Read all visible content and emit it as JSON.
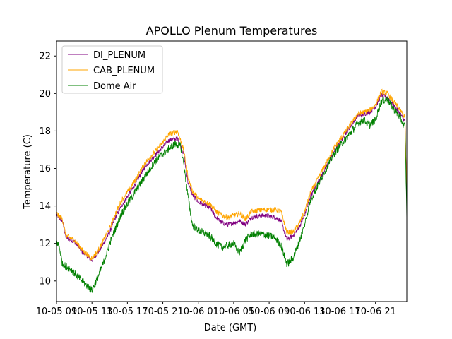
{
  "chart_data": {
    "type": "line",
    "title": "APOLLO Plenum Temperatures",
    "xlabel": "Date (GMT)",
    "ylabel": "Temperature (C)",
    "ylim": [
      8.9,
      22.8
    ],
    "yticks": [
      10,
      12,
      14,
      16,
      18,
      20,
      22
    ],
    "xlim": [
      0,
      59.3
    ],
    "xticks": [
      {
        "t": 0,
        "label": "10-05 09"
      },
      {
        "t": 6,
        "label": "10-05 13"
      },
      {
        "t": 12,
        "label": "10-05 17"
      },
      {
        "t": 18,
        "label": "10-05 21"
      },
      {
        "t": 24,
        "label": "10-06 01"
      },
      {
        "t": 30,
        "label": "10-06 05"
      },
      {
        "t": 36,
        "label": "10-06 09"
      },
      {
        "t": 42,
        "label": "10-06 13"
      },
      {
        "t": 48,
        "label": "10-06 17"
      },
      {
        "t": 54,
        "label": "10-06 21"
      }
    ],
    "legend_position": "top-left",
    "series": [
      {
        "name": "DI_PLENUM",
        "color": "#800080",
        "noise": 0.12,
        "points": [
          [
            0,
            13.5
          ],
          [
            1,
            13.2
          ],
          [
            1.6,
            12.3
          ],
          [
            3,
            12.1
          ],
          [
            4.5,
            11.5
          ],
          [
            6,
            11.1
          ],
          [
            7,
            11.5
          ],
          [
            8,
            12.0
          ],
          [
            9,
            12.6
          ],
          [
            10,
            13.4
          ],
          [
            11,
            14.0
          ],
          [
            13,
            15.0
          ],
          [
            15,
            16.1
          ],
          [
            17,
            16.8
          ],
          [
            19,
            17.5
          ],
          [
            20.5,
            17.6
          ],
          [
            21.5,
            16.8
          ],
          [
            22.3,
            15.2
          ],
          [
            23,
            14.6
          ],
          [
            24,
            14.2
          ],
          [
            26,
            13.9
          ],
          [
            27,
            13.4
          ],
          [
            28,
            13.1
          ],
          [
            29,
            13.0
          ],
          [
            30,
            13.1
          ],
          [
            31,
            13.2
          ],
          [
            32,
            13.0
          ],
          [
            33,
            13.4
          ],
          [
            35,
            13.5
          ],
          [
            37,
            13.4
          ],
          [
            38,
            13.2
          ],
          [
            39,
            12.2
          ],
          [
            40,
            12.4
          ],
          [
            41,
            12.8
          ],
          [
            42,
            13.5
          ],
          [
            43,
            14.5
          ],
          [
            45,
            15.7
          ],
          [
            47,
            16.9
          ],
          [
            49,
            17.9
          ],
          [
            51,
            18.8
          ],
          [
            53,
            19.0
          ],
          [
            54,
            19.3
          ],
          [
            55,
            19.9
          ],
          [
            56,
            19.8
          ],
          [
            57,
            19.4
          ],
          [
            58,
            19.0
          ],
          [
            59,
            18.5
          ],
          [
            59.3,
            14.2
          ]
        ]
      },
      {
        "name": "CAB_PLENUM",
        "color": "#ffa500",
        "noise": 0.14,
        "points": [
          [
            0,
            13.6
          ],
          [
            1,
            13.3
          ],
          [
            1.6,
            12.4
          ],
          [
            3,
            12.2
          ],
          [
            4.5,
            11.6
          ],
          [
            6,
            11.2
          ],
          [
            7,
            11.6
          ],
          [
            8,
            12.2
          ],
          [
            9,
            12.8
          ],
          [
            10,
            13.6
          ],
          [
            11,
            14.3
          ],
          [
            13,
            15.2
          ],
          [
            15,
            16.3
          ],
          [
            17,
            17.0
          ],
          [
            19,
            17.8
          ],
          [
            20.5,
            18.0
          ],
          [
            21.5,
            17.0
          ],
          [
            22.3,
            15.5
          ],
          [
            23,
            14.8
          ],
          [
            24,
            14.4
          ],
          [
            26,
            14.1
          ],
          [
            27,
            13.7
          ],
          [
            28,
            13.5
          ],
          [
            29,
            13.4
          ],
          [
            30,
            13.5
          ],
          [
            31,
            13.6
          ],
          [
            32,
            13.3
          ],
          [
            33,
            13.7
          ],
          [
            35,
            13.8
          ],
          [
            37,
            13.8
          ],
          [
            38,
            13.7
          ],
          [
            39,
            12.6
          ],
          [
            40,
            12.6
          ],
          [
            41,
            13.0
          ],
          [
            42,
            13.7
          ],
          [
            43,
            14.7
          ],
          [
            45,
            15.9
          ],
          [
            47,
            17.1
          ],
          [
            49,
            18.0
          ],
          [
            51,
            18.9
          ],
          [
            53,
            19.1
          ],
          [
            54,
            19.4
          ],
          [
            55,
            20.1
          ],
          [
            56,
            20.0
          ],
          [
            57,
            19.6
          ],
          [
            58,
            19.2
          ],
          [
            59,
            18.7
          ],
          [
            59.3,
            14.2
          ]
        ]
      },
      {
        "name": "Dome Air",
        "color": "#008000",
        "noise": 0.2,
        "points": [
          [
            0,
            12.1
          ],
          [
            0.5,
            11.8
          ],
          [
            1,
            10.9
          ],
          [
            2.5,
            10.6
          ],
          [
            4,
            10.1
          ],
          [
            5,
            9.8
          ],
          [
            6,
            9.5
          ],
          [
            7,
            10.2
          ],
          [
            8,
            11.0
          ],
          [
            9,
            12.0
          ],
          [
            10,
            12.8
          ],
          [
            11,
            13.6
          ],
          [
            13,
            14.6
          ],
          [
            15,
            15.6
          ],
          [
            17,
            16.5
          ],
          [
            18.5,
            16.9
          ],
          [
            20,
            17.3
          ],
          [
            21,
            17.2
          ],
          [
            21.5,
            16.3
          ],
          [
            22.3,
            14.4
          ],
          [
            23,
            13.0
          ],
          [
            24,
            12.7
          ],
          [
            26,
            12.4
          ],
          [
            27,
            12.0
          ],
          [
            28,
            11.8
          ],
          [
            29,
            11.9
          ],
          [
            30,
            12.0
          ],
          [
            31,
            11.5
          ],
          [
            32,
            12.2
          ],
          [
            33,
            12.5
          ],
          [
            35,
            12.5
          ],
          [
            37,
            12.3
          ],
          [
            38,
            11.9
          ],
          [
            39,
            10.9
          ],
          [
            40,
            11.2
          ],
          [
            41,
            12.0
          ],
          [
            42,
            13.0
          ],
          [
            43,
            14.3
          ],
          [
            45,
            15.6
          ],
          [
            47,
            16.8
          ],
          [
            49,
            17.6
          ],
          [
            51,
            18.4
          ],
          [
            52,
            18.6
          ],
          [
            53,
            18.3
          ],
          [
            54,
            18.6
          ],
          [
            55,
            19.6
          ],
          [
            56,
            19.7
          ],
          [
            57,
            19.2
          ],
          [
            58,
            18.8
          ],
          [
            59,
            18.2
          ],
          [
            59.3,
            13.3
          ]
        ]
      }
    ]
  }
}
